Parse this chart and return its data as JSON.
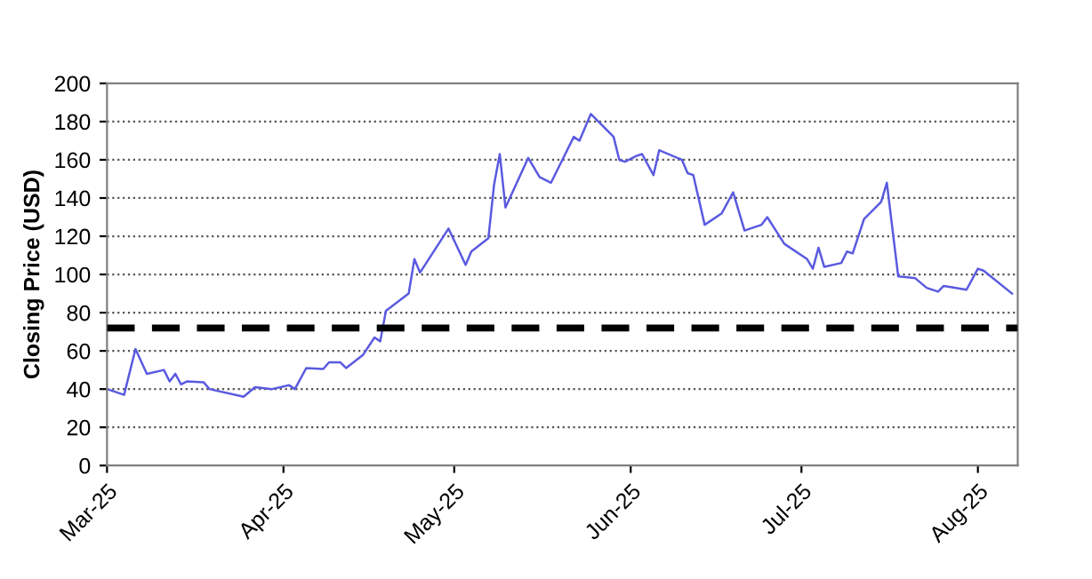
{
  "chart_data": {
    "type": "line",
    "ylabel": "Closing Price (USD)",
    "x": [
      "2025-03-01",
      "2025-03-04",
      "2025-03-06",
      "2025-03-08",
      "2025-03-11",
      "2025-03-12",
      "2025-03-13",
      "2025-03-14",
      "2025-03-15",
      "2025-03-18",
      "2025-03-19",
      "2025-03-25",
      "2025-03-27",
      "2025-03-30",
      "2025-04-02",
      "2025-04-03",
      "2025-04-05",
      "2025-04-08",
      "2025-04-09",
      "2025-04-11",
      "2025-04-12",
      "2025-04-15",
      "2025-04-17",
      "2025-04-18",
      "2025-04-19",
      "2025-04-23",
      "2025-04-24",
      "2025-04-25",
      "2025-04-30",
      "2025-05-03",
      "2025-05-04",
      "2025-05-07",
      "2025-05-08",
      "2025-05-09",
      "2025-05-10",
      "2025-05-14",
      "2025-05-16",
      "2025-05-18",
      "2025-05-20",
      "2025-05-22",
      "2025-05-23",
      "2025-05-25",
      "2025-05-28",
      "2025-05-29",
      "2025-05-30",
      "2025-05-31",
      "2025-06-02",
      "2025-06-03",
      "2025-06-05",
      "2025-06-06",
      "2025-06-10",
      "2025-06-11",
      "2025-06-12",
      "2025-06-14",
      "2025-06-17",
      "2025-06-19",
      "2025-06-21",
      "2025-06-24",
      "2025-06-25",
      "2025-06-28",
      "2025-07-02",
      "2025-07-03",
      "2025-07-04",
      "2025-07-05",
      "2025-07-08",
      "2025-07-09",
      "2025-07-10",
      "2025-07-12",
      "2025-07-15",
      "2025-07-16",
      "2025-07-18",
      "2025-07-21",
      "2025-07-23",
      "2025-07-25",
      "2025-07-26",
      "2025-07-30",
      "2025-08-01",
      "2025-08-02",
      "2025-08-07"
    ],
    "series": [
      {
        "color": "#5a5ae0",
        "values": [
          40,
          37,
          61,
          48,
          50,
          44,
          48,
          42.5,
          44,
          43.5,
          40,
          36,
          41,
          40,
          42,
          40,
          51,
          50.5,
          54,
          54,
          51,
          58,
          67,
          65,
          81,
          90,
          108,
          101,
          124,
          105,
          112,
          119,
          147,
          163,
          135,
          161,
          151,
          148,
          160,
          172,
          170,
          184,
          175,
          172,
          160,
          159,
          162,
          163,
          152,
          165,
          160,
          153,
          152,
          126,
          132,
          143,
          123,
          126,
          130,
          116,
          108,
          103,
          114,
          104,
          106,
          112,
          111,
          129,
          138,
          148,
          99,
          98,
          93,
          91,
          94,
          92,
          103,
          102,
          90
        ]
      }
    ],
    "xlim": [
      "2025-03-01",
      "2025-08-08"
    ],
    "xticks": [
      {
        "value": "2025-03-01",
        "label": "Mar-25"
      },
      {
        "value": "2025-04-01",
        "label": "Apr-25"
      },
      {
        "value": "2025-05-01",
        "label": "May-25"
      },
      {
        "value": "2025-06-01",
        "label": "Jun-25"
      },
      {
        "value": "2025-07-01",
        "label": "Jul-25"
      },
      {
        "value": "2025-08-01",
        "label": "Aug-25"
      }
    ],
    "ylim": [
      0,
      200
    ],
    "yticks": [
      0,
      20,
      40,
      60,
      80,
      100,
      120,
      140,
      160,
      180,
      200
    ],
    "grid": "y",
    "legend": false,
    "marker": "none",
    "line_style": "solid",
    "ref_lines": [
      {
        "axis": "y",
        "value": 72,
        "color": "#000000",
        "line_style": "dashed"
      }
    ]
  }
}
